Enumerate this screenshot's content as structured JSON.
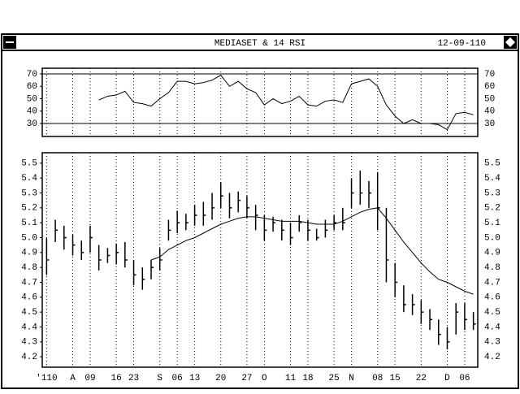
{
  "header": {
    "title": "MEDIASET & 14 RSI",
    "date": "12-09-110"
  },
  "chart_data": [
    {
      "type": "line",
      "color": "#000000",
      "values": [
        null,
        null,
        null,
        null,
        null,
        null,
        49,
        52,
        53,
        56,
        47,
        46,
        44,
        50,
        55,
        64,
        64,
        62,
        63,
        65,
        69,
        60,
        64,
        58,
        55,
        45,
        50,
        46,
        48,
        52,
        45,
        44,
        48,
        49,
        47,
        62,
        64,
        66,
        60,
        45,
        36,
        30,
        33,
        30,
        30,
        29,
        25,
        38,
        39,
        37
      ],
      "ylim": [
        19.5,
        74.6
      ],
      "yticks": [
        30,
        40,
        50,
        60,
        70
      ],
      "hlines": [
        70,
        30
      ],
      "grid": true
    },
    {
      "type": "ohlc",
      "color": "#000000",
      "categories": [
        "'110",
        null,
        null,
        "A",
        null,
        "09",
        null,
        null,
        "16",
        null,
        "23",
        null,
        null,
        "S",
        null,
        "06",
        null,
        "13",
        null,
        null,
        "20",
        null,
        null,
        "27",
        null,
        "O",
        null,
        null,
        "11",
        null,
        "18",
        null,
        null,
        "25",
        null,
        "N",
        null,
        null,
        "08",
        null,
        "15",
        null,
        null,
        "22",
        null,
        null,
        "D",
        null,
        "06",
        null
      ],
      "high": [
        5.0,
        5.12,
        5.08,
        5.02,
        4.98,
        5.08,
        4.95,
        4.93,
        4.96,
        4.97,
        4.85,
        4.8,
        4.85,
        4.93,
        5.12,
        5.18,
        5.16,
        5.22,
        5.24,
        5.3,
        5.37,
        5.3,
        5.31,
        5.28,
        5.22,
        5.15,
        5.14,
        5.12,
        5.1,
        5.15,
        5.12,
        5.06,
        5.12,
        5.15,
        5.2,
        5.4,
        5.45,
        5.38,
        5.44,
        5.2,
        4.83,
        4.68,
        4.62,
        4.58,
        4.52,
        4.45,
        4.4,
        4.56,
        4.56,
        4.5
      ],
      "low": [
        4.75,
        4.97,
        4.92,
        4.88,
        4.85,
        4.9,
        4.78,
        4.83,
        4.82,
        4.8,
        4.68,
        4.65,
        4.72,
        4.78,
        4.98,
        5.03,
        5.05,
        5.08,
        5.08,
        5.12,
        5.2,
        5.13,
        5.17,
        5.13,
        5.05,
        4.98,
        5.04,
        4.98,
        4.95,
        5.04,
        4.98,
        4.98,
        5.0,
        5.05,
        5.05,
        5.2,
        5.22,
        5.2,
        5.05,
        4.7,
        4.6,
        4.5,
        4.48,
        4.42,
        4.38,
        4.28,
        4.25,
        4.35,
        4.38,
        4.38
      ],
      "close": [
        4.85,
        5.05,
        5.0,
        4.95,
        4.9,
        5.0,
        4.85,
        4.88,
        4.9,
        4.85,
        4.75,
        4.72,
        4.8,
        4.85,
        5.05,
        5.1,
        5.1,
        5.15,
        5.15,
        5.2,
        5.28,
        5.2,
        5.25,
        5.2,
        5.15,
        5.05,
        5.1,
        5.05,
        5.0,
        5.1,
        5.05,
        5.0,
        5.05,
        5.1,
        5.1,
        5.3,
        5.3,
        5.3,
        5.2,
        4.85,
        4.7,
        4.55,
        4.55,
        4.5,
        4.45,
        4.35,
        4.3,
        4.5,
        4.45,
        4.42
      ],
      "moving_average": [
        null,
        null,
        null,
        null,
        null,
        null,
        null,
        null,
        null,
        null,
        null,
        null,
        4.85,
        4.87,
        4.92,
        4.95,
        4.98,
        5.0,
        5.03,
        5.06,
        5.09,
        5.11,
        5.13,
        5.14,
        5.14,
        5.13,
        5.12,
        5.11,
        5.11,
        5.11,
        5.1,
        5.09,
        5.09,
        5.09,
        5.11,
        5.14,
        5.17,
        5.19,
        5.2,
        5.13,
        5.05,
        4.97,
        4.9,
        4.83,
        4.77,
        4.72,
        4.7,
        4.67,
        4.64,
        4.62
      ],
      "ylim": [
        4.13,
        5.57
      ],
      "yticks": [
        4.2,
        4.3,
        4.4,
        4.5,
        4.6,
        4.7,
        4.8,
        4.9,
        {
          "value": 5,
          "label": "5.0"
        },
        5.1,
        5.2,
        5.3,
        5.4,
        5.5
      ],
      "grid": true
    }
  ]
}
